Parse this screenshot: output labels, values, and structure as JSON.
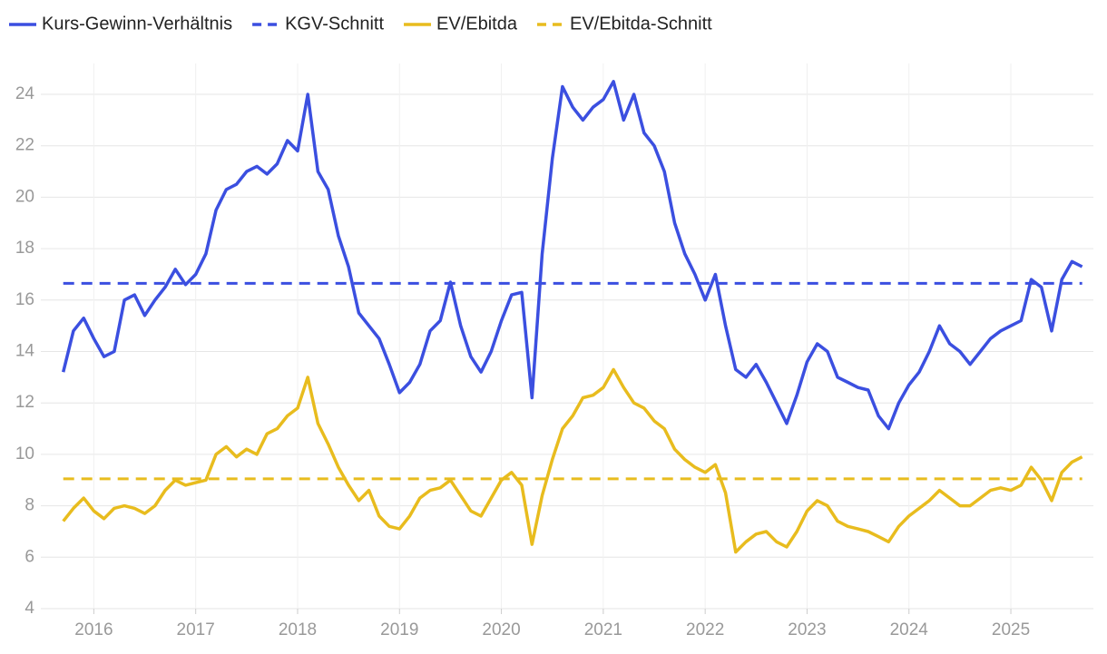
{
  "chart_data": {
    "type": "line",
    "x": [
      2015.7,
      2015.8,
      2015.9,
      2016.0,
      2016.1,
      2016.2,
      2016.3,
      2016.4,
      2016.5,
      2016.6,
      2016.7,
      2016.8,
      2016.9,
      2017.0,
      2017.1,
      2017.2,
      2017.3,
      2017.4,
      2017.5,
      2017.6,
      2017.7,
      2017.8,
      2017.9,
      2018.0,
      2018.1,
      2018.2,
      2018.3,
      2018.4,
      2018.5,
      2018.6,
      2018.7,
      2018.8,
      2018.9,
      2019.0,
      2019.1,
      2019.2,
      2019.3,
      2019.4,
      2019.5,
      2019.6,
      2019.7,
      2019.8,
      2019.9,
      2020.0,
      2020.1,
      2020.2,
      2020.3,
      2020.4,
      2020.5,
      2020.6,
      2020.7,
      2020.8,
      2020.9,
      2021.0,
      2021.1,
      2021.2,
      2021.3,
      2021.4,
      2021.5,
      2021.6,
      2021.7,
      2021.8,
      2021.9,
      2022.0,
      2022.1,
      2022.2,
      2022.3,
      2022.4,
      2022.5,
      2022.6,
      2022.7,
      2022.8,
      2022.9,
      2023.0,
      2023.1,
      2023.2,
      2023.3,
      2023.4,
      2023.5,
      2023.6,
      2023.7,
      2023.8,
      2023.9,
      2024.0,
      2024.1,
      2024.2,
      2024.3,
      2024.4,
      2024.5,
      2024.6,
      2024.7,
      2024.8,
      2024.9,
      2025.0,
      2025.1,
      2025.2,
      2025.3,
      2025.4,
      2025.5,
      2025.6,
      2025.7
    ],
    "series": [
      {
        "name": "Kurs-Gewinn-Verhältnis",
        "color": "#3b4fe0",
        "values": [
          13.2,
          14.8,
          15.3,
          14.5,
          13.8,
          14.0,
          16.0,
          16.2,
          15.4,
          16.0,
          16.5,
          17.2,
          16.6,
          17.0,
          17.8,
          19.5,
          20.3,
          20.5,
          21.0,
          21.2,
          20.9,
          21.3,
          22.2,
          21.8,
          24.0,
          21.0,
          20.3,
          18.5,
          17.3,
          15.5,
          15.0,
          14.5,
          13.5,
          12.4,
          12.8,
          13.5,
          14.8,
          15.2,
          16.7,
          15.0,
          13.8,
          13.2,
          14.0,
          15.2,
          16.2,
          16.3,
          12.2,
          17.8,
          21.5,
          24.3,
          23.5,
          23.0,
          23.5,
          23.8,
          24.5,
          23.0,
          24.0,
          22.5,
          22.0,
          21.0,
          19.0,
          17.8,
          17.0,
          16.0,
          17.0,
          15.0,
          13.3,
          13.0,
          13.5,
          12.8,
          12.0,
          11.2,
          12.3,
          13.6,
          14.3,
          14.0,
          13.0,
          12.8,
          12.6,
          12.5,
          11.5,
          11.0,
          12.0,
          12.7,
          13.2,
          14.0,
          15.0,
          14.3,
          14.0,
          13.5,
          14.0,
          14.5,
          14.8,
          15.0,
          15.2,
          16.8,
          16.5,
          14.8,
          16.8,
          17.5,
          17.3
        ]
      },
      {
        "name": "KGV-Schnitt",
        "color": "#3b4fe0",
        "dashed": true,
        "value": 16.65
      },
      {
        "name": "EV/Ebitda",
        "color": "#e8bc1e",
        "values": [
          7.4,
          7.9,
          8.3,
          7.8,
          7.5,
          7.9,
          8.0,
          7.9,
          7.7,
          8.0,
          8.6,
          9.0,
          8.8,
          8.9,
          9.0,
          10.0,
          10.3,
          9.9,
          10.2,
          10.0,
          10.8,
          11.0,
          11.5,
          11.8,
          13.0,
          11.2,
          10.4,
          9.5,
          8.8,
          8.2,
          8.6,
          7.6,
          7.2,
          7.1,
          7.6,
          8.3,
          8.6,
          8.7,
          9.0,
          8.4,
          7.8,
          7.6,
          8.3,
          9.0,
          9.3,
          8.8,
          6.5,
          8.4,
          9.8,
          11.0,
          11.5,
          12.2,
          12.3,
          12.6,
          13.3,
          12.6,
          12.0,
          11.8,
          11.3,
          11.0,
          10.2,
          9.8,
          9.5,
          9.3,
          9.6,
          8.5,
          6.2,
          6.6,
          6.9,
          7.0,
          6.6,
          6.4,
          7.0,
          7.8,
          8.2,
          8.0,
          7.4,
          7.2,
          7.1,
          7.0,
          6.8,
          6.6,
          7.2,
          7.6,
          7.9,
          8.2,
          8.6,
          8.3,
          8.0,
          8.0,
          8.3,
          8.6,
          8.7,
          8.6,
          8.8,
          9.5,
          9.0,
          8.2,
          9.3,
          9.7,
          9.9
        ]
      },
      {
        "name": "EV/Ebitda-Schnitt",
        "color": "#e8bc1e",
        "dashed": true,
        "value": 9.05
      }
    ],
    "xlim": [
      2015.48,
      2025.81
    ],
    "xticks": [
      2016,
      2017,
      2018,
      2019,
      2020,
      2021,
      2022,
      2023,
      2024,
      2025
    ],
    "ylim": [
      4,
      25.2
    ],
    "yticks": [
      4,
      6,
      8,
      10,
      12,
      14,
      16,
      18,
      20,
      22,
      24
    ],
    "grid": true,
    "legend": "top"
  }
}
